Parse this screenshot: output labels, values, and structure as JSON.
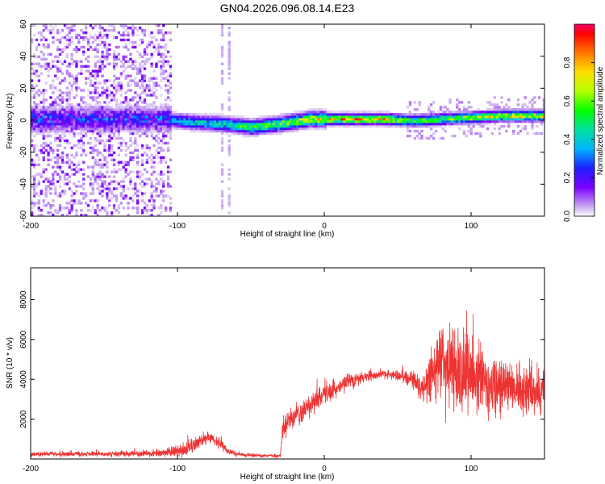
{
  "title": "GN04.2026.096.08.14.E23",
  "chart_data": [
    {
      "type": "heatmap",
      "name": "spectrogram",
      "xlabel": "Height of straight line (km)",
      "ylabel": "Frequency (Hz)",
      "xlim": [
        -200,
        150
      ],
      "ylim": [
        -60,
        60
      ],
      "xticks": [
        -200,
        -100,
        0,
        100
      ],
      "yticks": [
        -60,
        -40,
        -20,
        0,
        20,
        40,
        60
      ],
      "colorbar": {
        "label": "Normalized spectral amplitude",
        "range": [
          0,
          1
        ],
        "ticks": [
          0.0,
          0.2,
          0.4,
          0.6,
          0.8
        ],
        "tick_labels": [
          "0.0",
          "0.2",
          "0.4",
          "0.6",
          "0.8"
        ]
      },
      "ridge": {
        "description": "dominant frequency ridge (Hz) vs height (km)",
        "x": [
          -200,
          -150,
          -110,
          -90,
          -70,
          -50,
          -30,
          -10,
          0,
          20,
          40,
          60,
          80,
          100,
          120,
          150
        ],
        "y": [
          0,
          0,
          0,
          -2,
          -3,
          -5,
          -3,
          0,
          0,
          0,
          0,
          -1,
          0,
          1,
          2,
          2
        ],
        "peak_amplitude": [
          0.35,
          0.35,
          0.35,
          0.5,
          0.55,
          0.65,
          0.75,
          0.85,
          0.9,
          0.95,
          0.9,
          0.7,
          0.75,
          0.8,
          0.85,
          0.85
        ]
      },
      "noise_region_x": [
        -200,
        -105
      ]
    },
    {
      "type": "line",
      "name": "snr",
      "xlabel": "Height of straight line (km)",
      "ylabel": "SNR (10 * v/v)",
      "xlim": [
        -200,
        150
      ],
      "ylim": [
        0,
        9600
      ],
      "xticks": [
        -200,
        -100,
        0,
        100
      ],
      "yticks": [
        2000,
        4000,
        6000,
        8000
      ],
      "color": "#ee3333",
      "envelope": {
        "x": [
          -200,
          -150,
          -110,
          -95,
          -80,
          -70,
          -65,
          -55,
          -30,
          -28,
          -15,
          0,
          20,
          40,
          60,
          68,
          72,
          80,
          90,
          100,
          110,
          120,
          130,
          150
        ],
        "mean": [
          250,
          250,
          300,
          450,
          1100,
          800,
          350,
          200,
          150,
          1700,
          2400,
          3200,
          4000,
          4300,
          4000,
          3600,
          4200,
          5000,
          4600,
          4200,
          3900,
          3700,
          3500,
          3400
        ],
        "spread": [
          150,
          150,
          250,
          450,
          500,
          350,
          200,
          120,
          100,
          700,
          800,
          700,
          400,
          250,
          500,
          900,
          2000,
          2500,
          2600,
          2400,
          2200,
          1800,
          1500,
          1400
        ]
      }
    }
  ]
}
